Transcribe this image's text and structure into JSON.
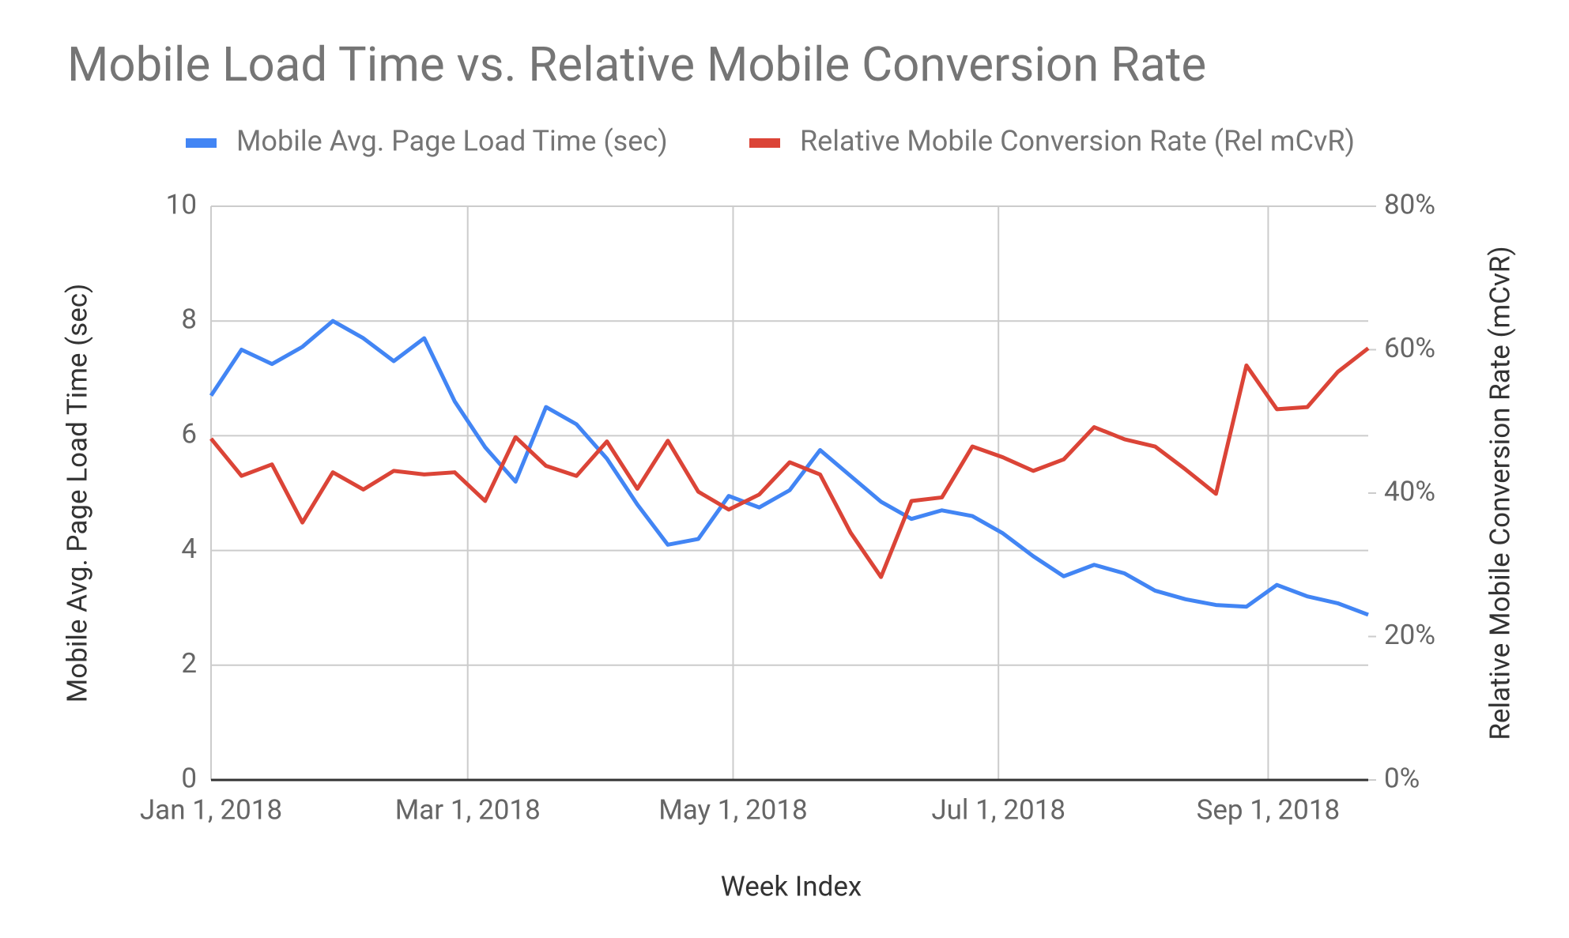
{
  "chart_data": {
    "type": "line",
    "title": "Mobile Load Time vs. Relative Mobile Conversion Rate",
    "x_label": "Week Index",
    "y_label": "Mobile Avg. Page Load Time (sec)",
    "y2_label": "Relative Mobile Conversion Rate (mCvR)",
    "x": [
      "2018-01-01",
      "2018-01-08",
      "2018-01-15",
      "2018-01-22",
      "2018-01-29",
      "2018-02-05",
      "2018-02-12",
      "2018-02-19",
      "2018-02-26",
      "2018-03-05",
      "2018-03-12",
      "2018-03-19",
      "2018-03-26",
      "2018-04-02",
      "2018-04-09",
      "2018-04-16",
      "2018-04-23",
      "2018-04-30",
      "2018-05-07",
      "2018-05-14",
      "2018-05-21",
      "2018-05-28",
      "2018-06-04",
      "2018-06-11",
      "2018-06-18",
      "2018-06-25",
      "2018-07-02",
      "2018-07-09",
      "2018-07-16",
      "2018-07-23",
      "2018-07-30",
      "2018-08-06",
      "2018-08-13",
      "2018-08-20",
      "2018-08-27",
      "2018-09-03",
      "2018-09-10",
      "2018-09-17",
      "2018-09-24"
    ],
    "xlim": [
      "2018-01-01",
      "2018-09-24"
    ],
    "xticks": [
      {
        "value": "2018-01-01",
        "label": "Jan 1, 2018"
      },
      {
        "value": "2018-03-01",
        "label": "Mar 1, 2018"
      },
      {
        "value": "2018-05-01",
        "label": "May 1, 2018"
      },
      {
        "value": "2018-07-01",
        "label": "Jul 1, 2018"
      },
      {
        "value": "2018-09-01",
        "label": "Sep 1, 2018"
      }
    ],
    "ylim": [
      0,
      10
    ],
    "yticks": [
      0,
      2,
      4,
      6,
      8,
      10
    ],
    "y2lim": [
      0,
      80
    ],
    "y2ticks": [
      {
        "value": 0,
        "label": "0%"
      },
      {
        "value": 20,
        "label": "20%"
      },
      {
        "value": 40,
        "label": "40%"
      },
      {
        "value": 60,
        "label": "60%"
      },
      {
        "value": 80,
        "label": "80%"
      }
    ],
    "grid": true,
    "legend": "top",
    "series": [
      {
        "name": "Mobile Avg. Page Load Time (sec)",
        "color": "#4285f4",
        "values": [
          6.7,
          7.5,
          7.25,
          7.55,
          8.0,
          7.7,
          7.3,
          7.7,
          6.6,
          5.8,
          5.2,
          6.5,
          6.2,
          5.6,
          4.8,
          4.1,
          4.2,
          4.95,
          4.75,
          5.05,
          5.75,
          5.3,
          4.85,
          4.55,
          4.7,
          4.6,
          4.3,
          3.9,
          3.55,
          3.75,
          3.6,
          3.3,
          3.15,
          3.05,
          3.02,
          3.4,
          3.2,
          3.08,
          2.88
        ]
      },
      {
        "name": "Relative Mobile Conversion Rate (Rel mCvR)",
        "color": "#db4437",
        "axis": "y2",
        "values": [
          47.6,
          42.4,
          44,
          35.9,
          42.9,
          40.5,
          43.1,
          42.6,
          42.9,
          38.9,
          47.8,
          43.8,
          42.4,
          47.2,
          40.6,
          47.3,
          40.2,
          37.7,
          39.8,
          44.3,
          42.6,
          34.5,
          28.3,
          38.9,
          39.4,
          46.5,
          45,
          43.1,
          44.7,
          49.2,
          47.5,
          46.5,
          43.3,
          39.9,
          57.8,
          51.7,
          52,
          56.9,
          60.2
        ]
      }
    ]
  }
}
